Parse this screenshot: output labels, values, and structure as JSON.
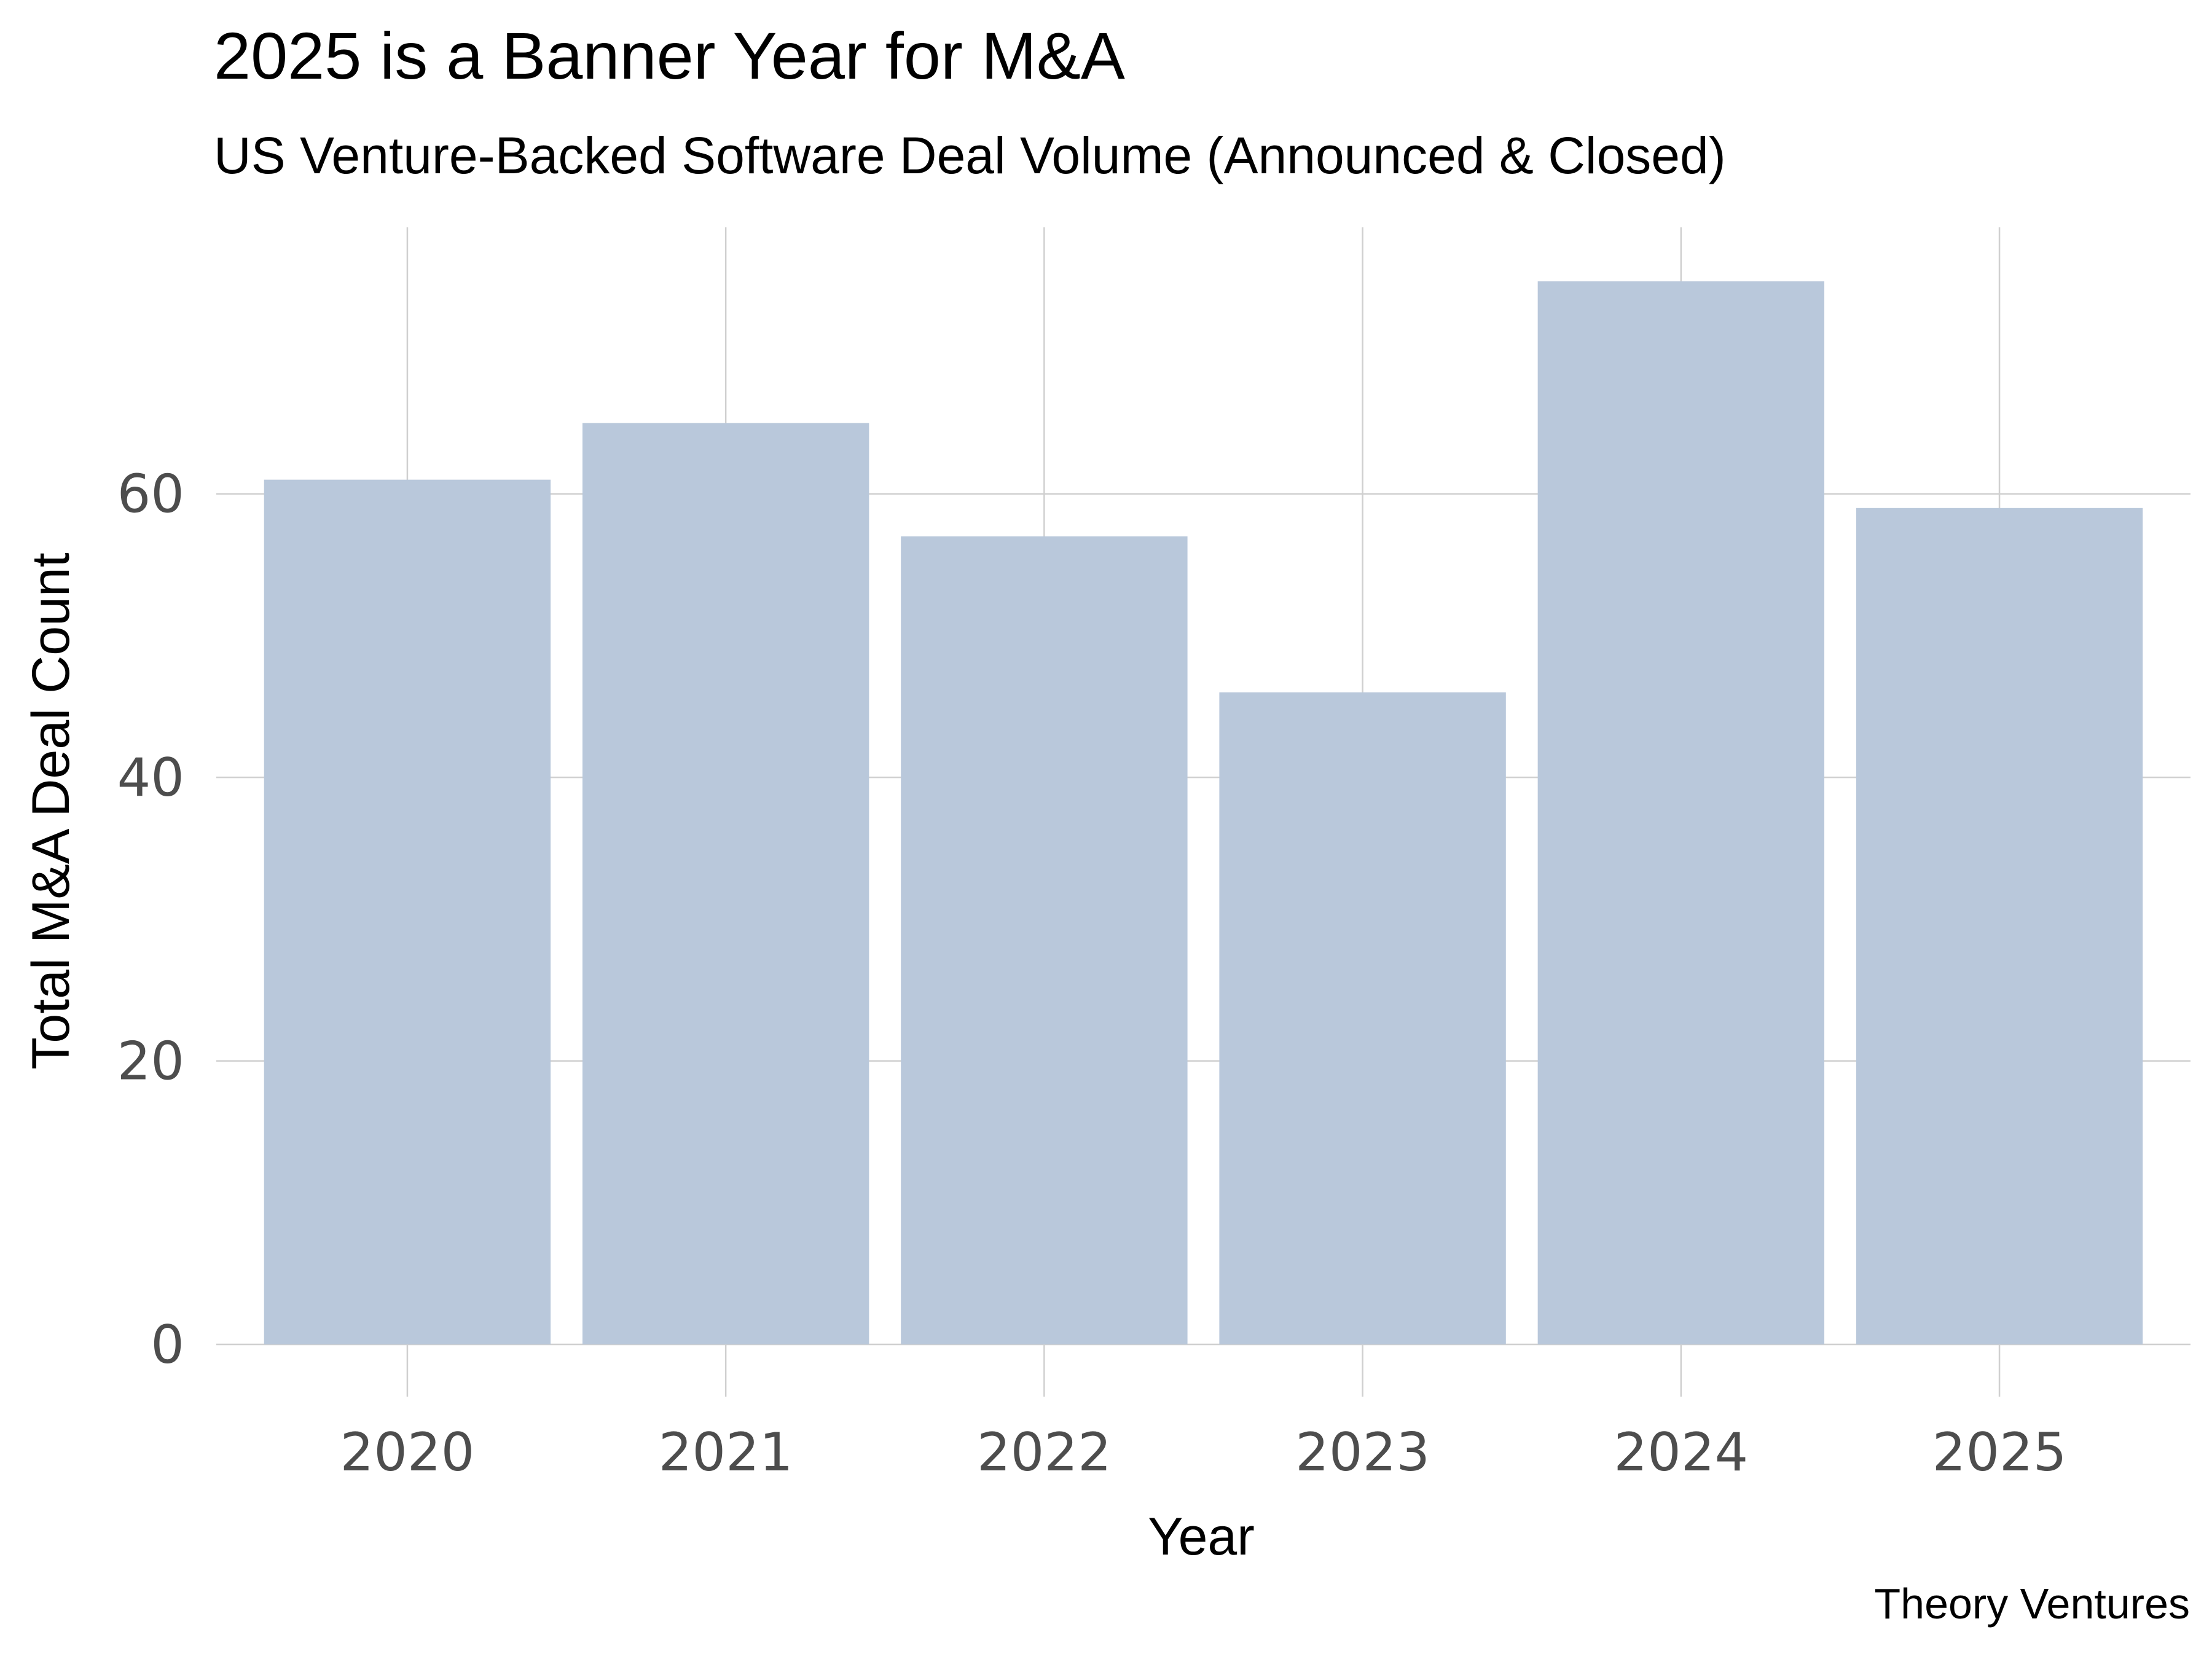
{
  "title": "2025 is a Banner Year for M&A",
  "subtitle": "US Venture-Backed Software Deal Volume (Announced & Closed)",
  "caption": "Theory Ventures",
  "chart_data": {
    "type": "bar",
    "categories": [
      "2020",
      "2021",
      "2022",
      "2023",
      "2024",
      "2025"
    ],
    "values": [
      61,
      65,
      57,
      46,
      75,
      59
    ],
    "xlabel": "Year",
    "ylabel": "Total M&A Deal Count",
    "ylim": [
      0,
      78.8
    ],
    "yticks": [
      0,
      20,
      40,
      60
    ],
    "grid": true,
    "legend": "none",
    "bar_color": "#b9c8db",
    "grid_color": "#d0d0d0"
  }
}
